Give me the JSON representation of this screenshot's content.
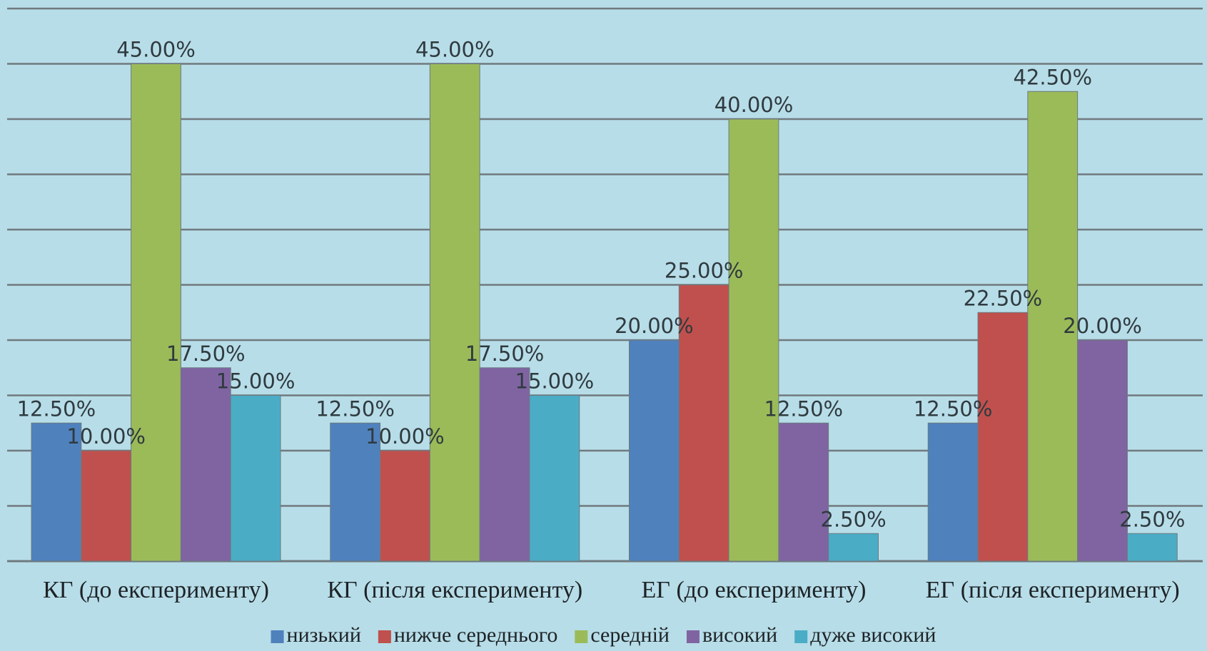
{
  "chart_data": {
    "type": "bar",
    "categories": [
      "КГ (до експерименту)",
      "КГ (після експерименту)",
      "ЕГ (до експерименту)",
      "ЕГ (після експерименту)"
    ],
    "series": [
      {
        "name": "низький",
        "color": "#4f81bd",
        "values": [
          12.5,
          12.5,
          20.0,
          12.5
        ],
        "labels": [
          "12.50%",
          "12.50%",
          "20.00%",
          "12.50%"
        ]
      },
      {
        "name": "нижче середнього",
        "color": "#c0504d",
        "values": [
          10.0,
          10.0,
          25.0,
          22.5
        ],
        "labels": [
          "10.00%",
          "10.00%",
          "25.00%",
          "22.50%"
        ]
      },
      {
        "name": "середній",
        "color": "#9bbb59",
        "values": [
          45.0,
          45.0,
          40.0,
          42.5
        ],
        "labels": [
          "45.00%",
          "45.00%",
          "40.00%",
          "42.50%"
        ]
      },
      {
        "name": "високий",
        "color": "#8064a2",
        "values": [
          17.5,
          17.5,
          12.5,
          20.0
        ],
        "labels": [
          "17.50%",
          "17.50%",
          "12.50%",
          "20.00%"
        ]
      },
      {
        "name": "дуже високий",
        "color": "#4bacc6",
        "values": [
          15.0,
          15.0,
          2.5,
          2.5
        ],
        "labels": [
          "15.00%",
          "15.00%",
          "2.50%",
          "2.50%"
        ]
      }
    ],
    "ylim": [
      0,
      50
    ],
    "grid": true,
    "legend": "bottom",
    "background": "#b7dde8",
    "gridline_color": "#707a7e"
  }
}
